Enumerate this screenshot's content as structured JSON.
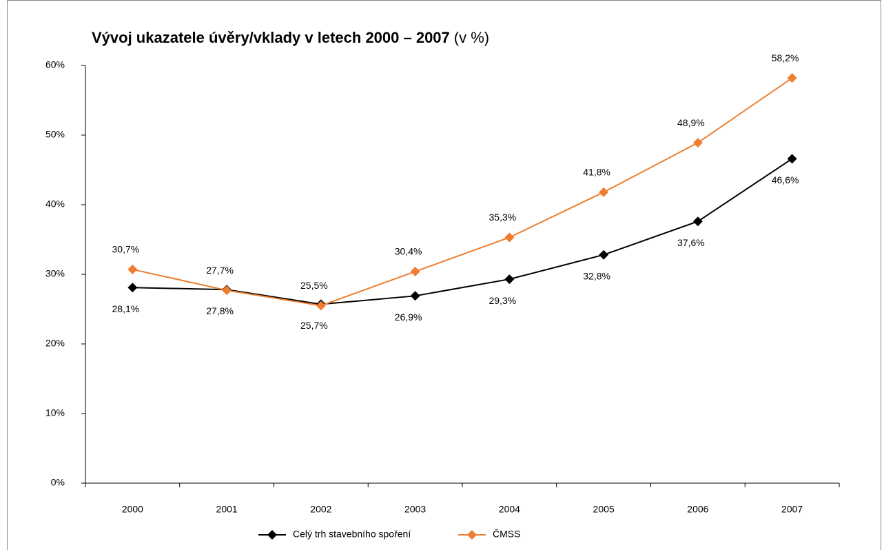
{
  "chart_data": {
    "type": "line",
    "title": "Vývoj ukazatele úvěry/vklady v letech 2000 – 2007",
    "unit_label": "(v %)",
    "categories": [
      "2000",
      "2001",
      "2002",
      "2003",
      "2004",
      "2005",
      "2006",
      "2007"
    ],
    "series": [
      {
        "name": "Celý trh stavebního spoření",
        "color": "#000000",
        "values": [
          28.1,
          27.8,
          25.7,
          26.9,
          29.3,
          32.8,
          37.6,
          46.6
        ],
        "value_labels": [
          "28,1%",
          "27,8%",
          "25,7%",
          "26,9%",
          "29,3%",
          "32,8%",
          "37,6%",
          "46,6%"
        ]
      },
      {
        "name": "ČMSS",
        "color": "#ee7d31",
        "values": [
          30.7,
          27.7,
          25.5,
          30.4,
          35.3,
          41.8,
          48.9,
          58.2
        ],
        "value_labels": [
          "30,7%",
          "27,7%",
          "25,5%",
          "30,4%",
          "35,3%",
          "41,8%",
          "48,9%",
          "58,2%"
        ]
      }
    ],
    "ylim": [
      0,
      60
    ],
    "yticks": [
      {
        "value": 0,
        "label": "0%"
      },
      {
        "value": 10,
        "label": "10%"
      },
      {
        "value": 20,
        "label": "20%"
      },
      {
        "value": 30,
        "label": "30%"
      },
      {
        "value": 40,
        "label": "40%"
      },
      {
        "value": 50,
        "label": "50%"
      },
      {
        "value": 60,
        "label": "60%"
      }
    ],
    "grid": false,
    "legend": "bottom"
  }
}
